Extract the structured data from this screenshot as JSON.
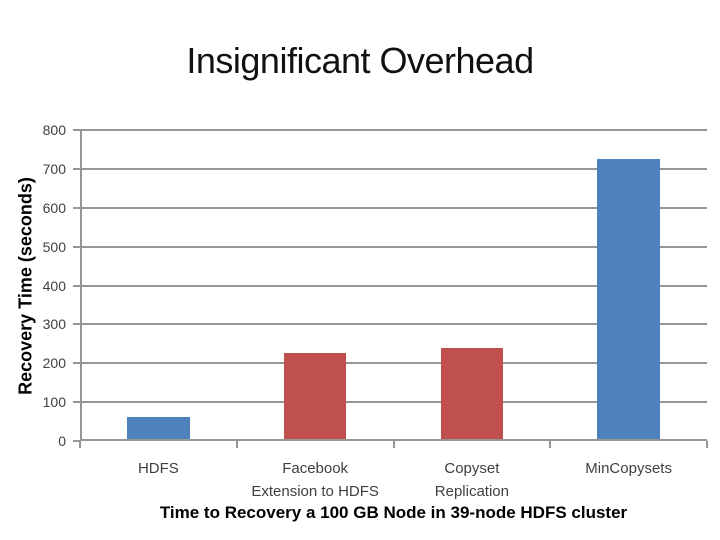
{
  "title": "Insignificant Overhead",
  "chart_data": {
    "type": "bar",
    "title": "",
    "categories": [
      "HDFS",
      "Facebook Extension to HDFS",
      "Copyset Replication",
      "MinCopysets"
    ],
    "category_lines": [
      [
        "HDFS"
      ],
      [
        "Facebook",
        "Extension to HDFS"
      ],
      [
        "Copyset",
        "Replication"
      ],
      [
        "MinCopysets"
      ]
    ],
    "values": [
      57,
      222,
      233,
      720
    ],
    "bar_colors": [
      "#4f81bd",
      "#c0504d",
      "#c0504d",
      "#4f81bd"
    ],
    "xlabel": "Time to Recovery a 100 GB Node in 39-node HDFS cluster",
    "ylabel": "Recovery Time (seconds)",
    "ylim": [
      0,
      800
    ],
    "ytick_step": 100,
    "ytick_labels": [
      "0",
      "100",
      "200",
      "300",
      "400",
      "500",
      "600",
      "700",
      "800"
    ],
    "grid": true,
    "legend": false,
    "gridline_color": "#969696",
    "bar_width_frac": 0.4
  }
}
